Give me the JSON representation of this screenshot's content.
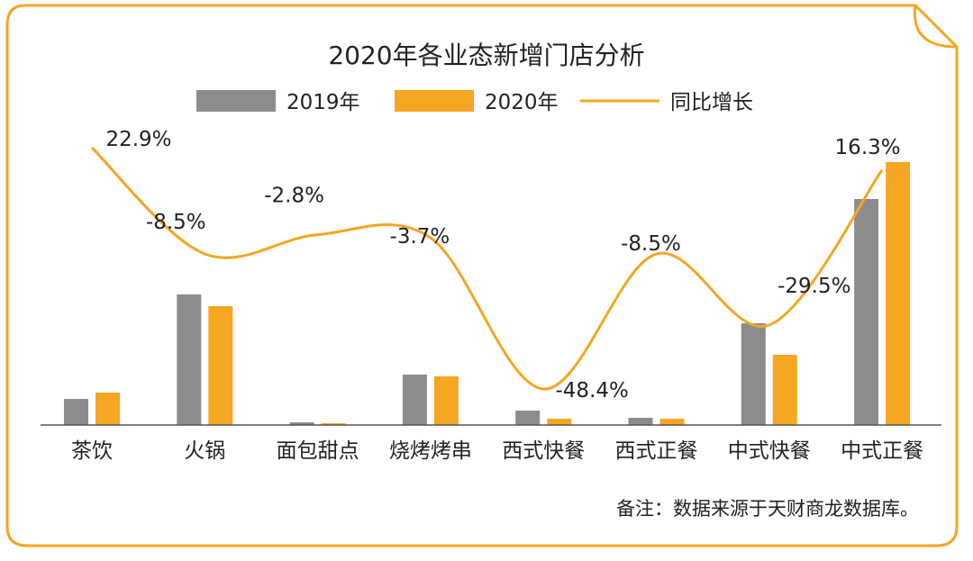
{
  "colors": {
    "frame": "#F5A623",
    "series_2019": "#8E8B8B",
    "series_2020": "#F5A623",
    "growth_line": "#F5A623",
    "text": "#222222",
    "axis": "#555555"
  },
  "chart_data": {
    "type": "bar",
    "title": "2020年各业态新增门店分析",
    "categories": [
      "茶饮",
      "火锅",
      "面包甜点",
      "烧烤烤串",
      "西式快餐",
      "西式正餐",
      "中式快餐",
      "中式正餐"
    ],
    "series": [
      {
        "name": "2019年",
        "values": [
          29,
          145,
          3,
          56,
          16,
          8,
          113,
          251
        ]
      },
      {
        "name": "2020年",
        "values": [
          36,
          132,
          2,
          54,
          7,
          7,
          78,
          292
        ]
      }
    ],
    "line_series": {
      "name": "同比增长",
      "values": [
        22.9,
        -8.5,
        -2.8,
        -3.7,
        -48.4,
        -8.5,
        -29.5,
        16.3
      ],
      "labels": [
        "22.9%",
        "-8.5%",
        "-2.8%",
        "-3.7%",
        "-48.4%",
        "-8.5%",
        "-29.5%",
        "16.3%"
      ]
    },
    "ylim": [
      0,
      300
    ],
    "xlabel": "",
    "ylabel": "",
    "legend_position": "top-center",
    "grid": false
  },
  "footnote": "备注：数据来源于天财商龙数据库。"
}
